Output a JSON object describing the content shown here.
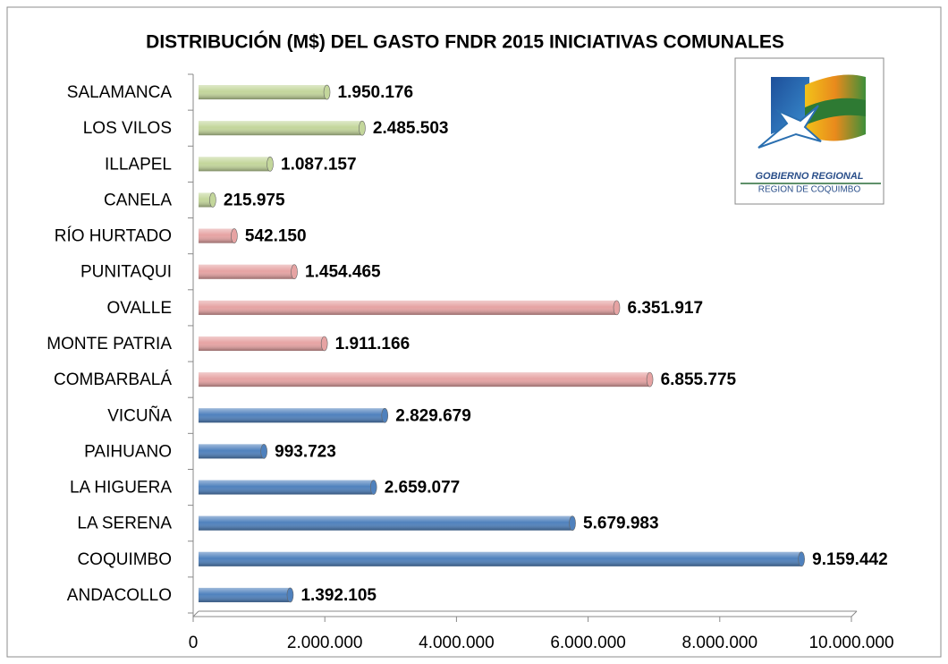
{
  "chart_data": {
    "type": "bar",
    "orientation": "horizontal",
    "title": "DISTRIBUCIÓN (M$) DEL GASTO FNDR 2015 INICIATIVAS COMUNALES",
    "categories": [
      "SALAMANCA",
      "LOS VILOS",
      "ILLAPEL",
      "CANELA",
      "RÍO HURTADO",
      "PUNITAQUI",
      "OVALLE",
      "MONTE PATRIA",
      "COMBARBALÁ",
      "VICUÑA",
      "PAIHUANO",
      "LA HIGUERA",
      "LA SERENA",
      "COQUIMBO",
      "ANDACOLLO"
    ],
    "values": [
      1950176,
      2485503,
      1087157,
      215975,
      542150,
      1454465,
      6351917,
      1911166,
      6855775,
      2829679,
      993723,
      2659077,
      5679983,
      9159442,
      1392105
    ],
    "value_labels": [
      "1.950.176",
      "2.485.503",
      "1.087.157",
      "215.975",
      "542.150",
      "1.454.465",
      "6.351.917",
      "1.911.166",
      "6.855.775",
      "2.829.679",
      "993.723",
      "2.659.077",
      "5.679.983",
      "9.159.442",
      "1.392.105"
    ],
    "colors": [
      "#c3d69b",
      "#c3d69b",
      "#c3d69b",
      "#c3d69b",
      "#e6a3a3",
      "#e6a3a3",
      "#e6a3a3",
      "#e6a3a3",
      "#e6a3a3",
      "#4f81bd",
      "#4f81bd",
      "#4f81bd",
      "#4f81bd",
      "#4f81bd",
      "#4f81bd"
    ],
    "xlim": [
      0,
      10000000
    ],
    "xticks": [
      0,
      {
        "value": 2000000,
        "label": "2.000.000"
      },
      {
        "value": 4000000,
        "label": "4.000.000"
      },
      {
        "value": 6000000,
        "label": "6.000.000"
      },
      {
        "value": 8000000,
        "label": "8.000.000"
      },
      {
        "value": 10000000,
        "label": "10.000.000"
      }
    ],
    "grid": false
  },
  "logo": {
    "line1": "GOBIERNO REGIONAL",
    "line2": "REGION DE COQUIMBO"
  }
}
